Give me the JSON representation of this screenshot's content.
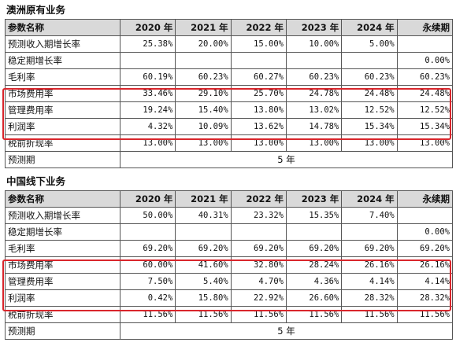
{
  "sections": [
    {
      "title": "澳洲原有业务",
      "headers": [
        "参数名称",
        "2020 年",
        "2021 年",
        "2022 年",
        "2023 年",
        "2024 年",
        "永续期"
      ],
      "rows": [
        [
          "预测收入期增长率",
          "25.38%",
          "20.00%",
          "15.00%",
          "10.00%",
          "5.00%",
          ""
        ],
        [
          "稳定期增长率",
          "",
          "",
          "",
          "",
          "",
          "0.00%"
        ],
        [
          "毛利率",
          "60.19%",
          "60.23%",
          "60.27%",
          "60.23%",
          "60.23%",
          "60.23%"
        ],
        [
          "市场费用率",
          "33.46%",
          "29.10%",
          "25.70%",
          "24.78%",
          "24.48%",
          "24.48%"
        ],
        [
          "管理费用率",
          "19.24%",
          "15.40%",
          "13.80%",
          "13.02%",
          "12.52%",
          "12.52%"
        ],
        [
          "利润率",
          "4.32%",
          "10.09%",
          "13.62%",
          "14.78%",
          "15.34%",
          "15.34%"
        ],
        [
          "税前折现率",
          "13.00%",
          "13.00%",
          "13.00%",
          "13.00%",
          "13.00%",
          "13.00%"
        ]
      ],
      "forecast_label": "预测期",
      "forecast_value": "5 年"
    },
    {
      "title": "中国线下业务",
      "headers": [
        "参数名称",
        "2020 年",
        "2021 年",
        "2022 年",
        "2023 年",
        "2024 年",
        "永续期"
      ],
      "rows": [
        [
          "预测收入期增长率",
          "50.00%",
          "40.31%",
          "23.32%",
          "15.35%",
          "7.40%",
          ""
        ],
        [
          "稳定期增长率",
          "",
          "",
          "",
          "",
          "",
          "0.00%"
        ],
        [
          "毛利率",
          "69.20%",
          "69.20%",
          "69.20%",
          "69.20%",
          "69.20%",
          "69.20%"
        ],
        [
          "市场费用率",
          "60.00%",
          "41.60%",
          "32.80%",
          "28.24%",
          "26.16%",
          "26.16%"
        ],
        [
          "管理费用率",
          "7.50%",
          "5.40%",
          "4.70%",
          "4.36%",
          "4.14%",
          "4.14%"
        ],
        [
          "利润率",
          "0.42%",
          "15.80%",
          "22.92%",
          "26.60%",
          "28.32%",
          "28.32%"
        ],
        [
          "税前折现率",
          "11.56%",
          "11.56%",
          "11.56%",
          "11.56%",
          "11.56%",
          "11.56%"
        ]
      ],
      "forecast_label": "预测期",
      "forecast_value": "5 年"
    }
  ],
  "highlight_color": "#d9262c",
  "header_bg": "#d9d9d9"
}
